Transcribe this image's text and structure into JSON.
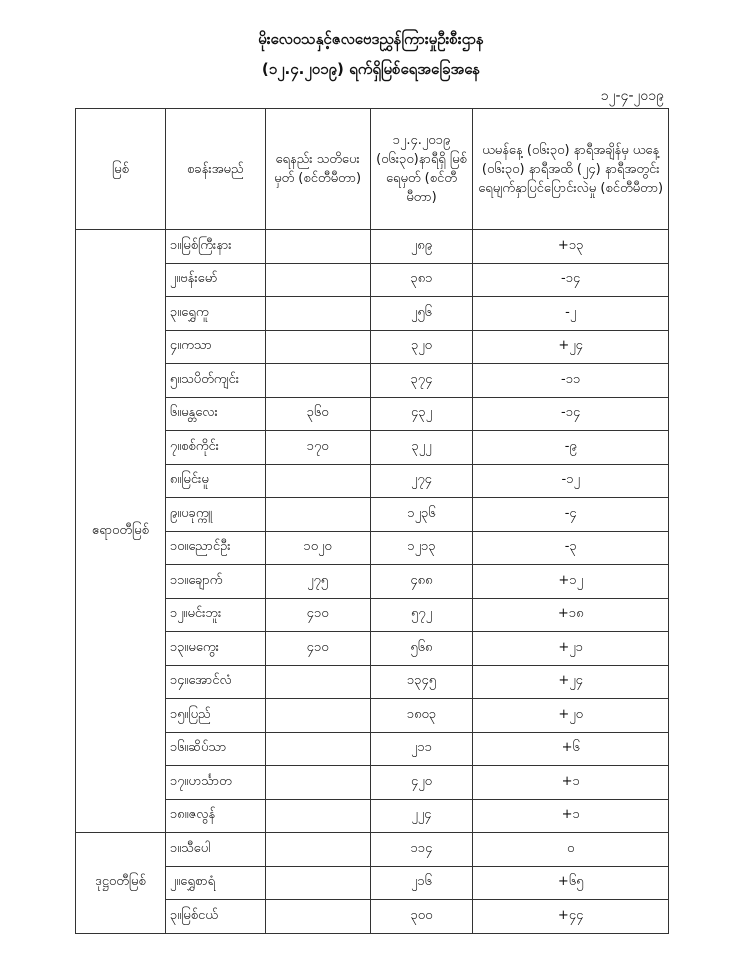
{
  "header": {
    "title": "မိုးလေဝသနှင့်ဇလဗေဒညွှန်ကြားမှုဦးစီးဌာန",
    "subtitle": "(၁၂.၄.၂၀၁၉) ရက်ရှိမြစ်ရေအခြေအနေ",
    "date": "၁၂-၄-၂၀၁၉"
  },
  "table": {
    "columns": [
      "မြစ်",
      "စခန်းအမည်",
      "ရေနည်း သတိပေးမှတ် (စင်တီမီတာ)",
      "၁၂.၄.၂၀၁၉ (၀၆း၃၀)နာရီရှိ မြစ်ရေမှတ် (စင်တီမီတာ)",
      "ယမန်နေ့ (၀၆း၃၀) နာရီအချိန်မှ ယနေ့ (၀၆း၃၀) နာရီအထိ (၂၄) နာရီအတွင်း ရေမျက်နှာပြင်ပြောင်းလဲမှု (စင်တီမီတာ)"
    ],
    "groups": [
      {
        "river": "ဧရာဝတီမြစ်",
        "rows": [
          {
            "station": "၁။မြစ်ကြီးနား",
            "warning": "",
            "level": "၂၈၉",
            "change": "+၁၃"
          },
          {
            "station": "၂။ဗန်းမော်",
            "warning": "",
            "level": "၃၈၁",
            "change": "-၁၄"
          },
          {
            "station": "၃။ရွှေကူ",
            "warning": "",
            "level": "၂၅၆",
            "change": "-၂"
          },
          {
            "station": "၄။ကသာ",
            "warning": "",
            "level": "၃၂၀",
            "change": "+၂၄"
          },
          {
            "station": "၅။သပိတ်ကျင်း",
            "warning": "",
            "level": "၃၇၄",
            "change": "-၁၁"
          },
          {
            "station": "၆။မန္တလေး",
            "warning": "၃၆၀",
            "level": "၄၃၂",
            "change": "-၁၄"
          },
          {
            "station": "၇။စစ်ကိုင်း",
            "warning": "၁၇၀",
            "level": "၃၂၂",
            "change": "-၉"
          },
          {
            "station": "၈။မြင်းမူ",
            "warning": "",
            "level": "၂၇၄",
            "change": "-၁၂"
          },
          {
            "station": "၉။ပခုက္ကူ",
            "warning": "",
            "level": "၁၂၃၆",
            "change": "-၄"
          },
          {
            "station": "၁၀။ညောင်ဦး",
            "warning": "၁၀၂၀",
            "level": "၁၂၁၃",
            "change": "-၃"
          },
          {
            "station": "၁၁။ချောက်",
            "warning": "၂၇၅",
            "level": "၄၈၈",
            "change": "+၁၂"
          },
          {
            "station": "၁၂။မင်းဘူး",
            "warning": "၄၁၀",
            "level": "၅၇၂",
            "change": "+၁၈"
          },
          {
            "station": "၁၃။မကွေး",
            "warning": "၄၁၀",
            "level": "၅၆၈",
            "change": "+၂၁"
          },
          {
            "station": "၁၄။အောင်လံ",
            "warning": "",
            "level": "၁၃၄၅",
            "change": "+၂၄"
          },
          {
            "station": "၁၅။ပြည်",
            "warning": "",
            "level": "၁၈၀၃",
            "change": "+၂၀"
          },
          {
            "station": "၁၆။ဆိပ်သာ",
            "warning": "",
            "level": "၂၁၁",
            "change": "+၆"
          },
          {
            "station": "၁၇။ဟင်္သာတ",
            "warning": "",
            "level": "၄၂၀",
            "change": "+၁"
          },
          {
            "station": "၁၈။ဇလွန်",
            "warning": "",
            "level": "၂၂၄",
            "change": "+၁"
          }
        ]
      },
      {
        "river": "ဒုဋ္ဌဝတီမြစ်",
        "rows": [
          {
            "station": "၁။သီပေါ",
            "warning": "",
            "level": "၁၁၄",
            "change": "၀"
          },
          {
            "station": "၂။ရွှေစာရံ",
            "warning": "",
            "level": "၂၁၆",
            "change": "+၆၅"
          },
          {
            "station": "၃။မြစ်ငယ်",
            "warning": "",
            "level": "၃၀၀",
            "change": "+၄၄"
          }
        ]
      }
    ]
  }
}
